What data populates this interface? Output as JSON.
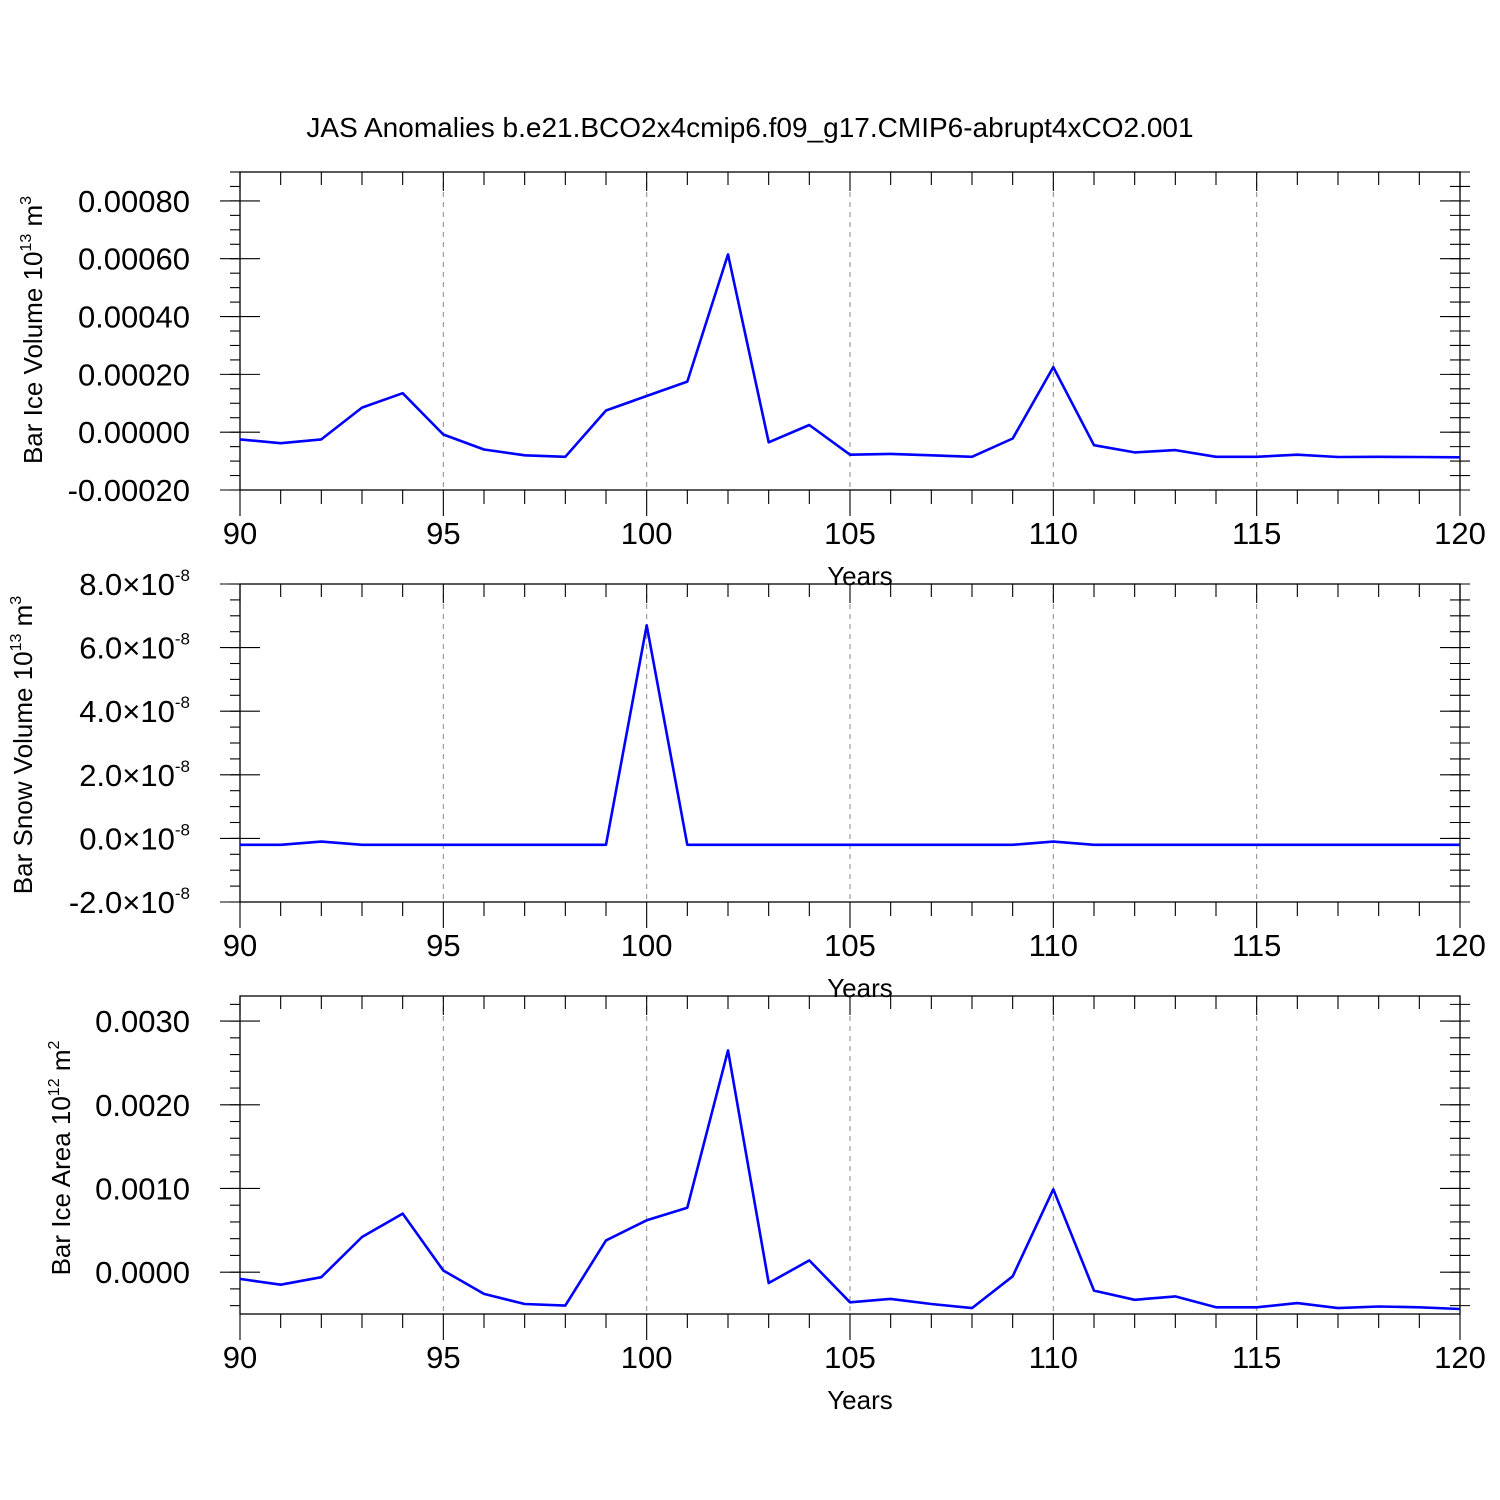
{
  "title": "JAS Anomalies b.e21.BCO2x4cmip6.f09_g17.CMIP6-abrupt4xCO2.001",
  "colors": {
    "series": "#0000ff",
    "frame": "#000000",
    "grid": "#888888"
  },
  "chart_data": [
    {
      "type": "line",
      "ylabel": {
        "text": "Bar Ice Volume 10",
        "sup1": "13",
        "unit": " m",
        "sup2": "3"
      },
      "xlabel": "Years",
      "xlim": [
        90,
        120
      ],
      "ylim": [
        -0.0002,
        0.0009
      ],
      "x_ticks": [
        90,
        95,
        100,
        105,
        110,
        115,
        120
      ],
      "x_tick_labels": [
        "90",
        "95",
        "100",
        "105",
        "110",
        "115",
        "120"
      ],
      "y_ticks": [
        -0.0002,
        0,
        0.0002,
        0.0004,
        0.0006,
        0.0008
      ],
      "y_tick_labels": [
        "-0.00020",
        "0.00000",
        "0.00020",
        "0.00040",
        "0.00060",
        "0.00080"
      ],
      "y_minor_step": 5e-05,
      "grid": "vertical dashed at major x ticks",
      "series": [
        {
          "x": [
            90,
            91,
            92,
            93,
            94,
            95,
            96,
            97,
            98,
            99,
            100,
            101,
            102,
            103,
            104,
            105,
            106,
            107,
            108,
            109,
            110,
            111,
            112,
            113,
            114,
            115,
            116,
            117,
            118,
            119,
            120
          ],
          "values": [
            -2.5e-05,
            -3.8e-05,
            -2.5e-05,
            8.5e-05,
            0.000135,
            -8e-06,
            -6e-05,
            -8e-05,
            -8.5e-05,
            7.5e-05,
            0.000125,
            0.000175,
            0.000615,
            -3.5e-05,
            2.5e-05,
            -7.8e-05,
            -7.5e-05,
            -8e-05,
            -8.5e-05,
            -2.2e-05,
            0.000225,
            -4.5e-05,
            -7e-05,
            -6.2e-05,
            -8.5e-05,
            -8.5e-05,
            -7.8e-05,
            -8.6e-05,
            -8.5e-05,
            -8.6e-05,
            -8.7e-05
          ]
        }
      ]
    },
    {
      "type": "line",
      "ylabel": {
        "text": "Bar Snow Volume 10",
        "sup1": "13",
        "unit": " m",
        "sup2": "3"
      },
      "xlabel": "Years",
      "xlim": [
        90,
        120
      ],
      "ylim": [
        -2e-08,
        8e-08
      ],
      "x_ticks": [
        90,
        95,
        100,
        105,
        110,
        115,
        120
      ],
      "x_tick_labels": [
        "90",
        "95",
        "100",
        "105",
        "110",
        "115",
        "120"
      ],
      "y_ticks": [
        -2e-08,
        0,
        2e-08,
        4e-08,
        6e-08,
        8e-08
      ],
      "y_tick_labels": [
        {
          "mantissa": "-2.0",
          "times": "×10",
          "exp": "-8"
        },
        {
          "mantissa": "0.0",
          "times": "×10",
          "exp": "-8"
        },
        {
          "mantissa": "2.0",
          "times": "×10",
          "exp": "-8"
        },
        {
          "mantissa": "4.0",
          "times": "×10",
          "exp": "-8"
        },
        {
          "mantissa": "6.0",
          "times": "×10",
          "exp": "-8"
        },
        {
          "mantissa": "8.0",
          "times": "×10",
          "exp": "-8"
        }
      ],
      "y_minor_step": 5e-09,
      "grid": "vertical dashed at major x ticks",
      "series": [
        {
          "x": [
            90,
            91,
            92,
            93,
            94,
            95,
            96,
            97,
            98,
            99,
            100,
            101,
            102,
            103,
            104,
            105,
            106,
            107,
            108,
            109,
            110,
            111,
            112,
            113,
            114,
            115,
            116,
            117,
            118,
            119,
            120
          ],
          "values": [
            -2e-09,
            -2e-09,
            -1e-09,
            -2e-09,
            -2e-09,
            -2e-09,
            -2e-09,
            -2e-09,
            -2e-09,
            -2e-09,
            6.7e-08,
            -2e-09,
            -2e-09,
            -2e-09,
            -2e-09,
            -2e-09,
            -2e-09,
            -2e-09,
            -2e-09,
            -2e-09,
            -1e-09,
            -2e-09,
            -2e-09,
            -2e-09,
            -2e-09,
            -2e-09,
            -2e-09,
            -2e-09,
            -2e-09,
            -2e-09,
            -2e-09
          ]
        }
      ]
    },
    {
      "type": "line",
      "ylabel": {
        "text": "Bar Ice Area 10",
        "sup1": "12",
        "unit": " m",
        "sup2": "2"
      },
      "xlabel": "Years",
      "xlim": [
        90,
        120
      ],
      "ylim": [
        -0.0005,
        0.0033
      ],
      "x_ticks": [
        90,
        95,
        100,
        105,
        110,
        115,
        120
      ],
      "x_tick_labels": [
        "90",
        "95",
        "100",
        "105",
        "110",
        "115",
        "120"
      ],
      "y_ticks": [
        0,
        0.001,
        0.002,
        0.003
      ],
      "y_tick_labels": [
        "0.0000",
        "0.0010",
        "0.0020",
        "0.0030"
      ],
      "y_minor_step": 0.0002,
      "grid": "vertical dashed at major x ticks",
      "series": [
        {
          "x": [
            90,
            91,
            92,
            93,
            94,
            95,
            96,
            97,
            98,
            99,
            100,
            101,
            102,
            103,
            104,
            105,
            106,
            107,
            108,
            109,
            110,
            111,
            112,
            113,
            114,
            115,
            116,
            117,
            118,
            119,
            120
          ],
          "values": [
            -8e-05,
            -0.00015,
            -6e-05,
            0.00042,
            0.0007,
            2e-05,
            -0.00026,
            -0.00038,
            -0.0004,
            0.00038,
            0.00062,
            0.00077,
            0.00265,
            -0.00013,
            0.00014,
            -0.00036,
            -0.00032,
            -0.00038,
            -0.00043,
            -5e-05,
            0.00099,
            -0.00022,
            -0.00033,
            -0.00029,
            -0.00042,
            -0.00042,
            -0.00037,
            -0.00043,
            -0.00041,
            -0.00042,
            -0.00044
          ]
        }
      ]
    }
  ]
}
